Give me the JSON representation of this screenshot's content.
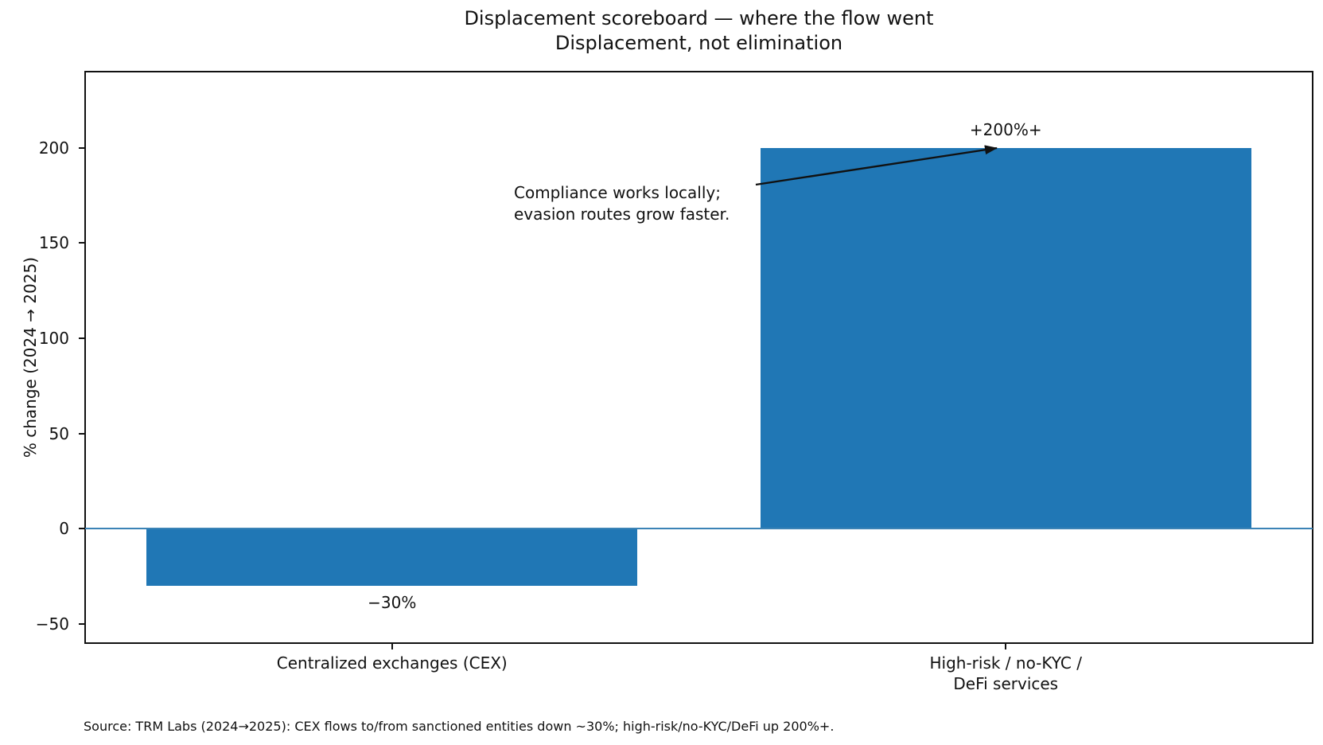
{
  "chart_data": {
    "type": "bar",
    "title": "Displacement scoreboard — where the flow went\nDisplacement, not elimination",
    "xlabel": "",
    "ylabel": "% change (2024 → 2025)",
    "categories": [
      "Centralized exchanges (CEX)",
      "High-risk / no-KYC /\nDeFi services"
    ],
    "values": [
      -30,
      200
    ],
    "bar_labels": [
      "−30%",
      "+200%+"
    ],
    "ylim": [
      -60,
      240
    ],
    "yticks": [
      {
        "value": 200,
        "label": "200"
      },
      {
        "value": 150,
        "label": "150"
      },
      {
        "value": 100,
        "label": "100"
      },
      {
        "value": 50,
        "label": "50"
      },
      {
        "value": 0,
        "label": "0"
      },
      {
        "value": -50,
        "label": "−50"
      }
    ],
    "grid": false,
    "legend": "none",
    "bar_color": "#2077b5",
    "zero_line_color": "#3b83b6",
    "annotation": {
      "text": "Compliance works locally;\nevasion routes grow faster.",
      "arrow_points_to_value": 200
    },
    "source_note": "Source: TRM Labs (2024→2025): CEX flows to/from sanctioned entities down ~30%; high-risk/no-KYC/DeFi up 200%+."
  }
}
